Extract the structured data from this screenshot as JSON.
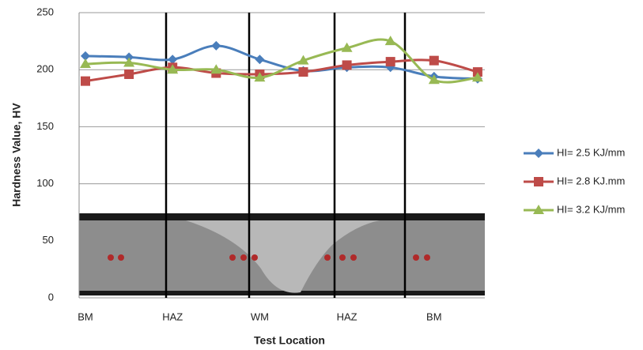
{
  "chart_data": {
    "type": "line",
    "x_label": "Test Location",
    "y_label": "Hardness Value, HV",
    "categories": [
      "BM",
      null,
      "HAZ",
      null,
      "WM",
      null,
      "HAZ",
      null,
      "BM",
      null
    ],
    "series": [
      {
        "name": "HI= 2.5 KJ/mm",
        "color": "#4a7ebb",
        "marker": "diamond",
        "values": [
          212,
          211,
          209,
          221,
          209,
          199,
          202,
          202,
          194,
          192
        ]
      },
      {
        "name": "HI= 2.8 KJ.mm",
        "color": "#be4b48",
        "marker": "square",
        "values": [
          190,
          196,
          202,
          197,
          196,
          198,
          204,
          207,
          208,
          198
        ]
      },
      {
        "name": "HI= 3.2 KJ/mm",
        "color": "#98b954",
        "marker": "triangle",
        "values": [
          205,
          206,
          200,
          200,
          193,
          208,
          219,
          225,
          191,
          193
        ]
      }
    ],
    "ylim": [
      0,
      250
    ],
    "yticks": [
      0,
      50,
      100,
      150,
      200,
      250
    ],
    "grid": true,
    "legend": "right"
  }
}
